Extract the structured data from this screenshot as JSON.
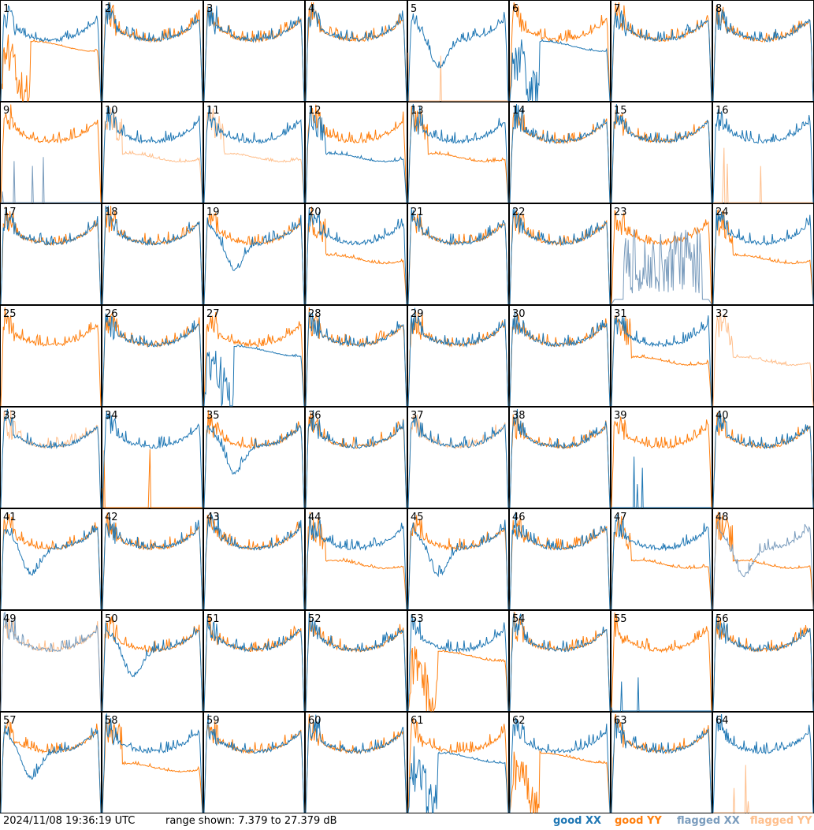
{
  "footer": {
    "timestamp": "2024/11/08 19:36:19 UTC",
    "range_text": "range shown: 7.379 to 27.379 dB",
    "legend": [
      {
        "label": "good XX",
        "color": "#1f77b4"
      },
      {
        "label": "good YY",
        "color": "#ff7f0e"
      },
      {
        "label": "flagged XX",
        "color": "#7a9cbd"
      },
      {
        "label": "flagged YY",
        "color": "#ffbf8c"
      }
    ]
  },
  "chart_data": {
    "type": "line",
    "title": "",
    "unit": "dB",
    "ylim": [
      7.379,
      27.379
    ],
    "grid": {
      "rows": 8,
      "cols": 8
    },
    "series_colors": {
      "good_xx": "#1f77b4",
      "good_yy": "#ff7f0e",
      "flagged_xx": "#7a9cbd",
      "flagged_yy": "#ffbf8c"
    },
    "panels": [
      {
        "id": "1",
        "xx": "good",
        "yy": "good",
        "xx_shape": "normal",
        "yy_shape": "dip_low"
      },
      {
        "id": "2",
        "xx": "good",
        "yy": "good",
        "xx_shape": "normal",
        "yy_shape": "normal"
      },
      {
        "id": "3",
        "xx": "good",
        "yy": "good",
        "xx_shape": "normal",
        "yy_shape": "normal"
      },
      {
        "id": "4",
        "xx": "good",
        "yy": "good",
        "xx_shape": "normal",
        "yy_shape": "normal"
      },
      {
        "id": "5",
        "xx": "good",
        "yy": "flagged",
        "xx_shape": "dip_mid",
        "yy_shape": "dead"
      },
      {
        "id": "6",
        "xx": "good",
        "yy": "good",
        "xx_shape": "dip_low",
        "yy_shape": "normal"
      },
      {
        "id": "7",
        "xx": "good",
        "yy": "good",
        "xx_shape": "normal",
        "yy_shape": "normal"
      },
      {
        "id": "8",
        "xx": "good",
        "yy": "good",
        "xx_shape": "normal",
        "yy_shape": "normal"
      },
      {
        "id": "9",
        "xx": "flagged",
        "yy": "good",
        "xx_shape": "dead",
        "yy_shape": "normal"
      },
      {
        "id": "10",
        "xx": "good",
        "yy": "flagged",
        "xx_shape": "normal",
        "yy_shape": "lower"
      },
      {
        "id": "11",
        "xx": "good",
        "yy": "flagged",
        "xx_shape": "normal",
        "yy_shape": "lower"
      },
      {
        "id": "12",
        "xx": "good",
        "yy": "good",
        "xx_shape": "lower",
        "yy_shape": "normal"
      },
      {
        "id": "13",
        "xx": "good",
        "yy": "good",
        "xx_shape": "normal",
        "yy_shape": "lower"
      },
      {
        "id": "14",
        "xx": "good",
        "yy": "good",
        "xx_shape": "normal",
        "yy_shape": "normal"
      },
      {
        "id": "15",
        "xx": "good",
        "yy": "good",
        "xx_shape": "normal",
        "yy_shape": "normal"
      },
      {
        "id": "16",
        "xx": "good",
        "yy": "flagged",
        "xx_shape": "normal",
        "yy_shape": "dead"
      },
      {
        "id": "17",
        "xx": "good",
        "yy": "good",
        "xx_shape": "normal",
        "yy_shape": "normal"
      },
      {
        "id": "18",
        "xx": "good",
        "yy": "good",
        "xx_shape": "normal",
        "yy_shape": "normal"
      },
      {
        "id": "19",
        "xx": "good",
        "yy": "good",
        "xx_shape": "dip_mid",
        "yy_shape": "normal"
      },
      {
        "id": "20",
        "xx": "good",
        "yy": "good",
        "xx_shape": "normal",
        "yy_shape": "lower"
      },
      {
        "id": "21",
        "xx": "good",
        "yy": "good",
        "xx_shape": "normal",
        "yy_shape": "normal"
      },
      {
        "id": "22",
        "xx": "good",
        "yy": "good",
        "xx_shape": "normal",
        "yy_shape": "normal"
      },
      {
        "id": "23",
        "xx": "flagged",
        "yy": "good",
        "xx_shape": "noisy_low",
        "yy_shape": "normal"
      },
      {
        "id": "24",
        "xx": "good",
        "yy": "good",
        "xx_shape": "normal",
        "yy_shape": "lower"
      },
      {
        "id": "25",
        "xx": "none",
        "yy": "good",
        "xx_shape": "none",
        "yy_shape": "normal"
      },
      {
        "id": "26",
        "xx": "good",
        "yy": "good",
        "xx_shape": "normal",
        "yy_shape": "normal"
      },
      {
        "id": "27",
        "xx": "good",
        "yy": "good",
        "xx_shape": "dip_low",
        "yy_shape": "normal"
      },
      {
        "id": "28",
        "xx": "good",
        "yy": "good",
        "xx_shape": "normal",
        "yy_shape": "normal"
      },
      {
        "id": "29",
        "xx": "good",
        "yy": "good",
        "xx_shape": "normal",
        "yy_shape": "normal"
      },
      {
        "id": "30",
        "xx": "good",
        "yy": "good",
        "xx_shape": "normal",
        "yy_shape": "normal"
      },
      {
        "id": "31",
        "xx": "good",
        "yy": "good",
        "xx_shape": "normal",
        "yy_shape": "lower"
      },
      {
        "id": "32",
        "xx": "none",
        "yy": "flagged",
        "xx_shape": "none",
        "yy_shape": "lower"
      },
      {
        "id": "33",
        "xx": "good",
        "yy": "flagged",
        "xx_shape": "normal",
        "yy_shape": "normal"
      },
      {
        "id": "34",
        "xx": "good",
        "yy": "good",
        "xx_shape": "normal",
        "yy_shape": "dead"
      },
      {
        "id": "35",
        "xx": "good",
        "yy": "good",
        "xx_shape": "dip_mid",
        "yy_shape": "normal"
      },
      {
        "id": "36",
        "xx": "good",
        "yy": "good",
        "xx_shape": "normal",
        "yy_shape": "normal"
      },
      {
        "id": "37",
        "xx": "good",
        "yy": "flagged",
        "xx_shape": "normal",
        "yy_shape": "normal"
      },
      {
        "id": "38",
        "xx": "good",
        "yy": "good",
        "xx_shape": "normal",
        "yy_shape": "normal"
      },
      {
        "id": "39",
        "xx": "good",
        "yy": "good",
        "xx_shape": "dead",
        "yy_shape": "normal"
      },
      {
        "id": "40",
        "xx": "good",
        "yy": "good",
        "xx_shape": "normal",
        "yy_shape": "normal"
      },
      {
        "id": "41",
        "xx": "good",
        "yy": "good",
        "xx_shape": "dip_mid",
        "yy_shape": "normal"
      },
      {
        "id": "42",
        "xx": "good",
        "yy": "good",
        "xx_shape": "normal",
        "yy_shape": "normal"
      },
      {
        "id": "43",
        "xx": "good",
        "yy": "good",
        "xx_shape": "normal",
        "yy_shape": "normal"
      },
      {
        "id": "44",
        "xx": "good",
        "yy": "good",
        "xx_shape": "normal",
        "yy_shape": "lower"
      },
      {
        "id": "45",
        "xx": "good",
        "yy": "good",
        "xx_shape": "dip_mid",
        "yy_shape": "normal"
      },
      {
        "id": "46",
        "xx": "good",
        "yy": "good",
        "xx_shape": "normal",
        "yy_shape": "normal"
      },
      {
        "id": "47",
        "xx": "good",
        "yy": "good",
        "xx_shape": "normal",
        "yy_shape": "lower"
      },
      {
        "id": "48",
        "xx": "flagged",
        "yy": "good",
        "xx_shape": "dip_mid",
        "yy_shape": "lower"
      },
      {
        "id": "49",
        "xx": "flagged",
        "yy": "flagged",
        "xx_shape": "normal",
        "yy_shape": "normal"
      },
      {
        "id": "50",
        "xx": "good",
        "yy": "good",
        "xx_shape": "dip_mid",
        "yy_shape": "normal"
      },
      {
        "id": "51",
        "xx": "good",
        "yy": "good",
        "xx_shape": "normal",
        "yy_shape": "normal"
      },
      {
        "id": "52",
        "xx": "good",
        "yy": "good",
        "xx_shape": "normal",
        "yy_shape": "normal"
      },
      {
        "id": "53",
        "xx": "good",
        "yy": "good",
        "xx_shape": "normal",
        "yy_shape": "dip_low"
      },
      {
        "id": "54",
        "xx": "good",
        "yy": "good",
        "xx_shape": "normal",
        "yy_shape": "normal"
      },
      {
        "id": "55",
        "xx": "good",
        "yy": "good",
        "xx_shape": "dead",
        "yy_shape": "normal"
      },
      {
        "id": "56",
        "xx": "good",
        "yy": "good",
        "xx_shape": "normal",
        "yy_shape": "normal"
      },
      {
        "id": "57",
        "xx": "good",
        "yy": "good",
        "xx_shape": "dip_mid",
        "yy_shape": "normal"
      },
      {
        "id": "58",
        "xx": "good",
        "yy": "good",
        "xx_shape": "normal",
        "yy_shape": "lower"
      },
      {
        "id": "59",
        "xx": "good",
        "yy": "good",
        "xx_shape": "normal",
        "yy_shape": "normal"
      },
      {
        "id": "60",
        "xx": "good",
        "yy": "good",
        "xx_shape": "normal",
        "yy_shape": "normal"
      },
      {
        "id": "61",
        "xx": "good",
        "yy": "good",
        "xx_shape": "dip_low",
        "yy_shape": "normal"
      },
      {
        "id": "62",
        "xx": "good",
        "yy": "good",
        "xx_shape": "normal",
        "yy_shape": "dip_low"
      },
      {
        "id": "63",
        "xx": "good",
        "yy": "good",
        "xx_shape": "normal",
        "yy_shape": "normal"
      },
      {
        "id": "64",
        "xx": "good",
        "yy": "flagged",
        "xx_shape": "normal",
        "yy_shape": "dead"
      }
    ]
  }
}
